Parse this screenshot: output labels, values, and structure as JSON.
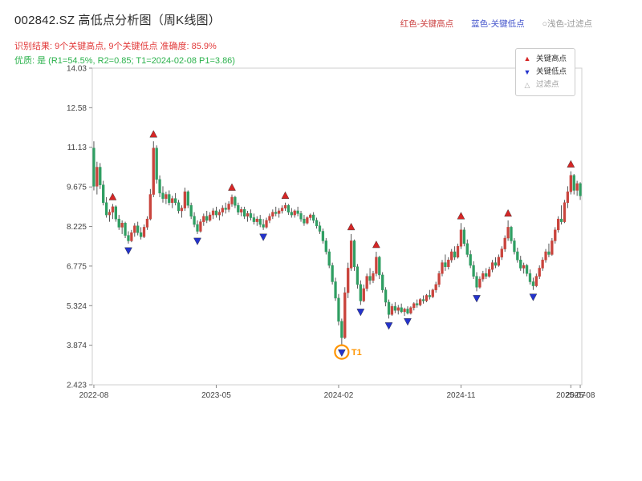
{
  "header": {
    "title": "002842.SZ 高低点分析图（周K线图）",
    "result_line": "识别结果: 9个关键高点, 9个关键低点  准确度: 85.9%",
    "quality_line": "优质: 是 (R1=54.5%, R2=0.85; T1=2024-02-08 P1=3.86)",
    "legend_top": [
      {
        "label": "红色-关键高点",
        "color": "#cc4444"
      },
      {
        "label": "蓝色-关键低点",
        "color": "#4455cc"
      },
      {
        "label": "○浅色-过滤点",
        "color": "#999999"
      }
    ]
  },
  "legend_box": {
    "items": [
      {
        "label": "关键高点",
        "marker": "up",
        "color": "#d62626",
        "muted": false
      },
      {
        "label": "关键低点",
        "marker": "down",
        "color": "#2433cc",
        "muted": false
      },
      {
        "label": "过滤点",
        "marker": "hollow",
        "color": "#aaaaaa",
        "muted": true
      }
    ]
  },
  "colors": {
    "up": "#c9443d",
    "down": "#2f9e62",
    "wick": "#444444",
    "high_marker": "#d62626",
    "low_marker": "#2433cc",
    "t1": "#ff9500",
    "axis_text": "#444444",
    "border": "#cfcfcf",
    "result_line": "#e23b3b",
    "quality_line": "#2bb24c",
    "title": "#2b2b2b"
  },
  "chart_data": {
    "type": "candlestick",
    "symbol": "002842.SZ",
    "interval": "weekly",
    "title": "002842.SZ 高低点分析图（周K线图）",
    "ylim": [
      2.423,
      14.03
    ],
    "yticks": [
      2.423,
      3.874,
      5.324,
      6.775,
      8.225,
      9.675,
      11.13,
      12.58,
      14.03
    ],
    "xticks": [
      {
        "i": 0,
        "label": "2022-08"
      },
      {
        "i": 39,
        "label": "2023-05"
      },
      {
        "i": 78,
        "label": "2024-02"
      },
      {
        "i": 117,
        "label": "2024-11"
      },
      {
        "i": 152,
        "label": "2025-07"
      },
      {
        "i": 155,
        "label": "2025-08"
      }
    ],
    "candles": [
      [
        11.1,
        11.35,
        9.55,
        9.7
      ],
      [
        9.7,
        10.6,
        9.4,
        10.4
      ],
      [
        10.4,
        10.55,
        9.6,
        9.75
      ],
      [
        9.75,
        9.9,
        9.0,
        9.1
      ],
      [
        9.1,
        9.3,
        8.55,
        8.65
      ],
      [
        8.65,
        8.85,
        8.4,
        8.75
      ],
      [
        8.75,
        9.05,
        8.5,
        8.95
      ],
      [
        8.95,
        9.0,
        8.4,
        8.5
      ],
      [
        8.5,
        8.65,
        8.1,
        8.2
      ],
      [
        8.2,
        8.45,
        7.95,
        8.35
      ],
      [
        8.35,
        8.4,
        7.8,
        7.9
      ],
      [
        7.9,
        8.05,
        7.6,
        7.7
      ],
      [
        7.7,
        8.1,
        7.65,
        8.0
      ],
      [
        8.0,
        8.35,
        7.85,
        8.25
      ],
      [
        8.25,
        8.4,
        7.9,
        8.0
      ],
      [
        8.0,
        8.2,
        7.75,
        7.85
      ],
      [
        7.85,
        8.3,
        7.8,
        8.2
      ],
      [
        8.2,
        8.6,
        8.1,
        8.5
      ],
      [
        8.5,
        9.6,
        8.45,
        9.4
      ],
      [
        9.4,
        11.35,
        9.3,
        11.1
      ],
      [
        11.1,
        11.2,
        9.8,
        9.95
      ],
      [
        9.95,
        10.1,
        9.3,
        9.45
      ],
      [
        9.45,
        9.7,
        9.1,
        9.25
      ],
      [
        9.25,
        9.5,
        9.05,
        9.4
      ],
      [
        9.4,
        9.55,
        9.0,
        9.1
      ],
      [
        9.1,
        9.35,
        8.9,
        9.25
      ],
      [
        9.25,
        9.45,
        9.0,
        9.1
      ],
      [
        9.1,
        9.2,
        8.7,
        8.8
      ],
      [
        8.8,
        9.0,
        8.55,
        8.9
      ],
      [
        8.9,
        9.65,
        8.8,
        9.5
      ],
      [
        9.5,
        9.55,
        8.9,
        9.0
      ],
      [
        9.0,
        9.1,
        8.5,
        8.6
      ],
      [
        8.6,
        8.75,
        8.2,
        8.3
      ],
      [
        8.3,
        8.45,
        7.95,
        8.05
      ],
      [
        8.05,
        8.5,
        8.0,
        8.4
      ],
      [
        8.4,
        8.7,
        8.25,
        8.6
      ],
      [
        8.6,
        8.8,
        8.35,
        8.45
      ],
      [
        8.45,
        8.75,
        8.4,
        8.65
      ],
      [
        8.65,
        8.9,
        8.5,
        8.8
      ],
      [
        8.8,
        8.95,
        8.55,
        8.65
      ],
      [
        8.65,
        8.85,
        8.45,
        8.75
      ],
      [
        8.75,
        9.0,
        8.6,
        8.9
      ],
      [
        8.9,
        9.1,
        8.7,
        8.85
      ],
      [
        8.85,
        9.15,
        8.75,
        9.05
      ],
      [
        9.05,
        9.4,
        8.95,
        9.3
      ],
      [
        9.3,
        9.35,
        8.9,
        9.0
      ],
      [
        9.0,
        9.1,
        8.65,
        8.75
      ],
      [
        8.75,
        8.95,
        8.6,
        8.85
      ],
      [
        8.85,
        8.95,
        8.5,
        8.6
      ],
      [
        8.6,
        8.8,
        8.4,
        8.7
      ],
      [
        8.7,
        8.85,
        8.45,
        8.55
      ],
      [
        8.55,
        8.7,
        8.3,
        8.4
      ],
      [
        8.4,
        8.6,
        8.25,
        8.5
      ],
      [
        8.5,
        8.65,
        8.2,
        8.3
      ],
      [
        8.3,
        8.5,
        8.1,
        8.2
      ],
      [
        8.2,
        8.55,
        8.15,
        8.45
      ],
      [
        8.45,
        8.7,
        8.35,
        8.6
      ],
      [
        8.6,
        8.85,
        8.5,
        8.75
      ],
      [
        8.75,
        8.95,
        8.6,
        8.7
      ],
      [
        8.7,
        8.9,
        8.55,
        8.8
      ],
      [
        8.8,
        9.0,
        8.7,
        8.9
      ],
      [
        8.9,
        9.1,
        8.8,
        9.0
      ],
      [
        9.0,
        9.05,
        8.65,
        8.75
      ],
      [
        8.75,
        8.9,
        8.55,
        8.65
      ],
      [
        8.65,
        8.85,
        8.55,
        8.8
      ],
      [
        8.8,
        8.95,
        8.6,
        8.7
      ],
      [
        8.7,
        8.8,
        8.4,
        8.5
      ],
      [
        8.5,
        8.65,
        8.25,
        8.35
      ],
      [
        8.35,
        8.6,
        8.3,
        8.55
      ],
      [
        8.55,
        8.7,
        8.45,
        8.65
      ],
      [
        8.65,
        8.75,
        8.35,
        8.45
      ],
      [
        8.45,
        8.55,
        8.15,
        8.25
      ],
      [
        8.25,
        8.4,
        7.95,
        8.05
      ],
      [
        8.05,
        8.15,
        7.6,
        7.7
      ],
      [
        7.7,
        7.8,
        7.2,
        7.3
      ],
      [
        7.3,
        7.4,
        6.7,
        6.8
      ],
      [
        6.8,
        6.9,
        6.1,
        6.2
      ],
      [
        6.2,
        6.35,
        5.5,
        5.6
      ],
      [
        5.6,
        5.75,
        4.6,
        4.75
      ],
      [
        4.75,
        4.85,
        3.86,
        4.15
      ],
      [
        4.15,
        6.0,
        4.1,
        5.8
      ],
      [
        5.8,
        6.9,
        5.6,
        6.7
      ],
      [
        6.7,
        7.95,
        6.6,
        7.7
      ],
      [
        7.7,
        7.75,
        6.6,
        6.75
      ],
      [
        6.75,
        6.85,
        5.95,
        6.1
      ],
      [
        6.1,
        6.25,
        5.35,
        5.5
      ],
      [
        5.5,
        6.1,
        5.45,
        5.95
      ],
      [
        5.95,
        6.5,
        5.85,
        6.4
      ],
      [
        6.4,
        6.7,
        6.1,
        6.25
      ],
      [
        6.25,
        6.6,
        6.15,
        6.5
      ],
      [
        6.5,
        7.3,
        6.4,
        7.1
      ],
      [
        7.1,
        7.15,
        6.3,
        6.45
      ],
      [
        6.45,
        6.55,
        5.8,
        5.9
      ],
      [
        5.9,
        6.0,
        5.3,
        5.45
      ],
      [
        5.45,
        5.55,
        4.85,
        5.0
      ],
      [
        5.0,
        5.4,
        4.95,
        5.3
      ],
      [
        5.3,
        5.45,
        5.05,
        5.15
      ],
      [
        5.15,
        5.35,
        5.0,
        5.25
      ],
      [
        5.25,
        5.4,
        5.05,
        5.1
      ],
      [
        5.1,
        5.25,
        4.95,
        5.2
      ],
      [
        5.2,
        5.3,
        5.0,
        5.05
      ],
      [
        5.05,
        5.3,
        5.0,
        5.25
      ],
      [
        5.25,
        5.45,
        5.15,
        5.4
      ],
      [
        5.4,
        5.55,
        5.25,
        5.35
      ],
      [
        5.35,
        5.6,
        5.3,
        5.55
      ],
      [
        5.55,
        5.7,
        5.4,
        5.5
      ],
      [
        5.5,
        5.75,
        5.45,
        5.7
      ],
      [
        5.7,
        5.9,
        5.55,
        5.65
      ],
      [
        5.65,
        5.95,
        5.6,
        5.9
      ],
      [
        5.9,
        6.2,
        5.8,
        6.1
      ],
      [
        6.1,
        6.6,
        6.0,
        6.5
      ],
      [
        6.5,
        7.0,
        6.4,
        6.9
      ],
      [
        6.9,
        7.2,
        6.6,
        6.75
      ],
      [
        6.75,
        7.1,
        6.65,
        7.0
      ],
      [
        7.0,
        7.4,
        6.9,
        7.3
      ],
      [
        7.3,
        7.5,
        7.0,
        7.1
      ],
      [
        7.1,
        7.6,
        7.05,
        7.5
      ],
      [
        7.5,
        8.35,
        7.4,
        8.1
      ],
      [
        8.1,
        8.2,
        7.5,
        7.6
      ],
      [
        7.6,
        7.75,
        7.1,
        7.2
      ],
      [
        7.2,
        7.35,
        6.7,
        6.8
      ],
      [
        6.8,
        6.95,
        6.3,
        6.4
      ],
      [
        6.4,
        6.55,
        5.85,
        6.0
      ],
      [
        6.0,
        6.4,
        5.95,
        6.3
      ],
      [
        6.3,
        6.6,
        6.2,
        6.5
      ],
      [
        6.5,
        6.7,
        6.3,
        6.4
      ],
      [
        6.4,
        6.75,
        6.35,
        6.65
      ],
      [
        6.65,
        7.0,
        6.55,
        6.9
      ],
      [
        6.9,
        7.1,
        6.7,
        6.8
      ],
      [
        6.8,
        7.2,
        6.75,
        7.1
      ],
      [
        7.1,
        7.5,
        7.0,
        7.4
      ],
      [
        7.4,
        7.9,
        7.3,
        7.8
      ],
      [
        7.8,
        8.45,
        7.7,
        8.2
      ],
      [
        8.2,
        8.25,
        7.6,
        7.7
      ],
      [
        7.7,
        7.8,
        7.2,
        7.3
      ],
      [
        7.3,
        7.45,
        6.9,
        7.0
      ],
      [
        7.0,
        7.15,
        6.6,
        6.7
      ],
      [
        6.7,
        6.9,
        6.5,
        6.8
      ],
      [
        6.8,
        6.85,
        6.4,
        6.5
      ],
      [
        6.5,
        6.65,
        6.1,
        6.2
      ],
      [
        6.2,
        6.35,
        5.9,
        6.05
      ],
      [
        6.05,
        6.5,
        6.0,
        6.4
      ],
      [
        6.4,
        6.8,
        6.3,
        6.7
      ],
      [
        6.7,
        7.1,
        6.6,
        7.0
      ],
      [
        7.0,
        7.4,
        6.9,
        7.3
      ],
      [
        7.3,
        7.6,
        7.1,
        7.2
      ],
      [
        7.2,
        7.8,
        7.15,
        7.7
      ],
      [
        7.7,
        8.2,
        7.6,
        8.1
      ],
      [
        8.1,
        8.6,
        8.0,
        8.5
      ],
      [
        8.5,
        9.0,
        8.3,
        8.4
      ],
      [
        8.4,
        9.2,
        8.35,
        9.1
      ],
      [
        9.1,
        9.7,
        8.9,
        9.5
      ],
      [
        9.5,
        10.25,
        9.4,
        10.1
      ],
      [
        10.1,
        10.15,
        9.4,
        9.55
      ],
      [
        9.55,
        9.9,
        9.35,
        9.8
      ],
      [
        9.8,
        9.85,
        9.2,
        9.35
      ]
    ],
    "key_highs": [
      {
        "i": 6,
        "p": 9.05
      },
      {
        "i": 19,
        "p": 11.35
      },
      {
        "i": 44,
        "p": 9.4
      },
      {
        "i": 61,
        "p": 9.1
      },
      {
        "i": 82,
        "p": 7.95
      },
      {
        "i": 90,
        "p": 7.3
      },
      {
        "i": 117,
        "p": 8.35
      },
      {
        "i": 132,
        "p": 8.45
      },
      {
        "i": 152,
        "p": 10.25
      }
    ],
    "key_lows": [
      {
        "i": 11,
        "p": 7.6
      },
      {
        "i": 33,
        "p": 7.95
      },
      {
        "i": 54,
        "p": 8.1
      },
      {
        "i": 79,
        "p": 3.86
      },
      {
        "i": 85,
        "p": 5.35
      },
      {
        "i": 94,
        "p": 4.85
      },
      {
        "i": 100,
        "p": 5.0
      },
      {
        "i": 122,
        "p": 5.85
      },
      {
        "i": 140,
        "p": 5.9
      }
    ],
    "t1": {
      "i": 79,
      "p": 3.86,
      "label": "T1",
      "date": "2024-02-08"
    }
  }
}
